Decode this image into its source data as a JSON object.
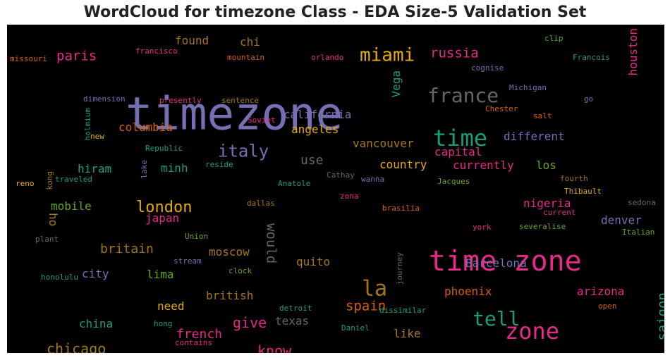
{
  "chart_data": {
    "type": "wordcloud",
    "title": "WordCloud for timezone Class - EDA Size-5 Validation Set",
    "background": "#000000",
    "palette": "Dark2",
    "words": [
      {
        "text": "timezone",
        "color": "#7570b3",
        "rotate": 0
      },
      {
        "text": "time zone",
        "color": "#e7298a",
        "rotate": 0
      },
      {
        "text": "zone",
        "color": "#e7298a",
        "rotate": 0
      },
      {
        "text": "time",
        "color": "#1b9e77",
        "rotate": 0
      },
      {
        "text": "tell",
        "color": "#1b9e77",
        "rotate": 0
      },
      {
        "text": "la",
        "color": "#a6761d",
        "rotate": 0
      },
      {
        "text": "france",
        "color": "#666666",
        "rotate": 0
      },
      {
        "text": "miami",
        "color": "#e6ab02",
        "rotate": 0
      },
      {
        "text": "italy",
        "color": "#7570b3",
        "rotate": 0
      },
      {
        "text": "london",
        "color": "#e6ab02",
        "rotate": 0
      },
      {
        "text": "russia",
        "color": "#e7298a",
        "rotate": 0
      },
      {
        "text": "paris",
        "color": "#e7298a",
        "rotate": 0
      },
      {
        "text": "give",
        "color": "#e7298a",
        "rotate": 0
      },
      {
        "text": "know",
        "color": "#e7298a",
        "rotate": 0
      },
      {
        "text": "chicago",
        "color": "#a6761d",
        "rotate": 0
      },
      {
        "text": "spain",
        "color": "#d95f02",
        "rotate": 0
      },
      {
        "text": "saigon",
        "color": "#1b9e77",
        "rotate": -90
      },
      {
        "text": "french",
        "color": "#e7298a",
        "rotate": 0
      },
      {
        "text": "britain",
        "color": "#a6761d",
        "rotate": 0
      },
      {
        "text": "would",
        "color": "#666666",
        "rotate": 90
      },
      {
        "text": "california",
        "color": "#7570b3",
        "rotate": 0
      },
      {
        "text": "different",
        "color": "#7570b3",
        "rotate": 0
      },
      {
        "text": "columbia",
        "color": "#d95f02",
        "rotate": 0
      },
      {
        "text": "use",
        "color": "#666666",
        "rotate": 0
      },
      {
        "text": "capital",
        "color": "#e7298a",
        "rotate": 0
      },
      {
        "text": "currently",
        "color": "#e7298a",
        "rotate": 0
      },
      {
        "text": "nigeria",
        "color": "#e7298a",
        "rotate": 0
      },
      {
        "text": "denver",
        "color": "#7570b3",
        "rotate": 0
      },
      {
        "text": "arizona",
        "color": "#e7298a",
        "rotate": 0
      },
      {
        "text": "houston",
        "color": "#e7298a",
        "rotate": -90
      },
      {
        "text": "Vega",
        "color": "#1b9e77",
        "rotate": -90
      },
      {
        "text": "Barcelona",
        "color": "#7570b3",
        "rotate": 0
      },
      {
        "text": "phoenix",
        "color": "#d95f02",
        "rotate": 0
      },
      {
        "text": "country",
        "color": "#e6ab02",
        "rotate": 0
      },
      {
        "text": "vancouver",
        "color": "#a6761d",
        "rotate": 0
      },
      {
        "text": "angeles",
        "color": "#e6ab02",
        "rotate": 0
      },
      {
        "text": "moscow",
        "color": "#a6761d",
        "rotate": 0
      },
      {
        "text": "quito",
        "color": "#a6761d",
        "rotate": 0
      },
      {
        "text": "british",
        "color": "#a6761d",
        "rotate": 0
      },
      {
        "text": "texas",
        "color": "#666666",
        "rotate": 0
      },
      {
        "text": "like",
        "color": "#a6761d",
        "rotate": 0
      },
      {
        "text": "need",
        "color": "#e6ab02",
        "rotate": 0
      },
      {
        "text": "china",
        "color": "#1b9e77",
        "rotate": 0
      },
      {
        "text": "city",
        "color": "#7570b3",
        "rotate": 0
      },
      {
        "text": "lima",
        "color": "#66a61e",
        "rotate": 0
      },
      {
        "text": "mobile",
        "color": "#66a61e",
        "rotate": 0
      },
      {
        "text": "japan",
        "color": "#e7298a",
        "rotate": 0
      },
      {
        "text": "hiram",
        "color": "#1b9e77",
        "rotate": 0
      },
      {
        "text": "minh",
        "color": "#1b9e77",
        "rotate": 0
      },
      {
        "text": "ho",
        "color": "#a6761d",
        "rotate": 90
      },
      {
        "text": "los",
        "color": "#66a61e",
        "rotate": 0
      },
      {
        "text": "chi",
        "color": "#a6761d",
        "rotate": 0
      },
      {
        "text": "found",
        "color": "#a6761d",
        "rotate": 0
      },
      {
        "text": "francisco",
        "color": "#e7298a",
        "rotate": 0
      },
      {
        "text": "mountain",
        "color": "#d95f02",
        "rotate": 0
      },
      {
        "text": "orlando",
        "color": "#e7298a",
        "rotate": 0
      },
      {
        "text": "missouri",
        "color": "#d95f02",
        "rotate": 0
      },
      {
        "text": "clip",
        "color": "#66a61e",
        "rotate": 0
      },
      {
        "text": "Francois",
        "color": "#1b9e77",
        "rotate": 0
      },
      {
        "text": "cognise",
        "color": "#7570b3",
        "rotate": 0
      },
      {
        "text": "Michigan",
        "color": "#7570b3",
        "rotate": 0
      },
      {
        "text": "go",
        "color": "#7570b3",
        "rotate": 0
      },
      {
        "text": "dimension",
        "color": "#7570b3",
        "rotate": 0
      },
      {
        "text": "presently",
        "color": "#e7298a",
        "rotate": 0
      },
      {
        "text": "sentence",
        "color": "#a6761d",
        "rotate": 0
      },
      {
        "text": "Chester",
        "color": "#d95f02",
        "rotate": 0
      },
      {
        "text": "salt",
        "color": "#d95f02",
        "rotate": 0
      },
      {
        "text": "Soviet",
        "color": "#e7298a",
        "rotate": 0
      },
      {
        "text": "new",
        "color": "#e6ab02",
        "rotate": 0
      },
      {
        "text": "holmium",
        "color": "#1b9e77",
        "rotate": -90
      },
      {
        "text": "Republic",
        "color": "#1b9e77",
        "rotate": 0
      },
      {
        "text": "reside",
        "color": "#1b9e77",
        "rotate": 0
      },
      {
        "text": "lake",
        "color": "#7570b3",
        "rotate": -90
      },
      {
        "text": "reno",
        "color": "#e6ab02",
        "rotate": 0
      },
      {
        "text": "kong",
        "color": "#a6761d",
        "rotate": -90
      },
      {
        "text": "traveled",
        "color": "#1b9e77",
        "rotate": 0
      },
      {
        "text": "Anatole",
        "color": "#1b9e77",
        "rotate": 0
      },
      {
        "text": "Cathay",
        "color": "#666666",
        "rotate": 0
      },
      {
        "text": "wanna",
        "color": "#7570b3",
        "rotate": 0
      },
      {
        "text": "Jacques",
        "color": "#66a61e",
        "rotate": 0
      },
      {
        "text": "fourth",
        "color": "#a6761d",
        "rotate": 0
      },
      {
        "text": "Thibault",
        "color": "#e6ab02",
        "rotate": 0
      },
      {
        "text": "zona",
        "color": "#e7298a",
        "rotate": 0
      },
      {
        "text": "dallas",
        "color": "#a6761d",
        "rotate": 0
      },
      {
        "text": "brasilia",
        "color": "#d95f02",
        "rotate": 0
      },
      {
        "text": "sedona",
        "color": "#666666",
        "rotate": 0
      },
      {
        "text": "current",
        "color": "#e7298a",
        "rotate": 0
      },
      {
        "text": "york",
        "color": "#e7298a",
        "rotate": 0
      },
      {
        "text": "severalise",
        "color": "#66a61e",
        "rotate": 0
      },
      {
        "text": "Italian",
        "color": "#66a61e",
        "rotate": 0
      },
      {
        "text": "plant",
        "color": "#666666",
        "rotate": 0
      },
      {
        "text": "Union",
        "color": "#66a61e",
        "rotate": 0
      },
      {
        "text": "stream",
        "color": "#7570b3",
        "rotate": 0
      },
      {
        "text": "clock",
        "color": "#66a61e",
        "rotate": 0
      },
      {
        "text": "journey",
        "color": "#666666",
        "rotate": -90
      },
      {
        "text": "honolulu",
        "color": "#1b9e77",
        "rotate": 0
      },
      {
        "text": "detroit",
        "color": "#1b9e77",
        "rotate": 0
      },
      {
        "text": "dissimilar",
        "color": "#1b9e77",
        "rotate": 0
      },
      {
        "text": "open",
        "color": "#d95f02",
        "rotate": 0
      },
      {
        "text": "hong",
        "color": "#1b9e77",
        "rotate": 0
      },
      {
        "text": "Daniel",
        "color": "#1b9e77",
        "rotate": 0
      },
      {
        "text": "contains",
        "color": "#e7298a",
        "rotate": 0
      }
    ]
  }
}
